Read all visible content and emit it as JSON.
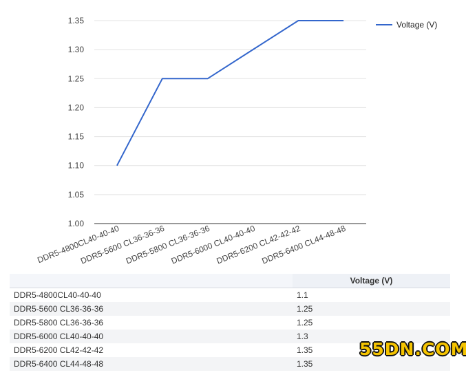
{
  "chart_data": {
    "type": "line",
    "categories": [
      "DDR5-4800CL40-40-40",
      "DDR5-5600 CL36-36-36",
      "DDR5-5800 CL36-36-36",
      "DDR5-6000 CL40-40-40",
      "DDR5-6200 CL42-42-42",
      "DDR5-6400 CL44-48-48"
    ],
    "series": [
      {
        "name": "Voltage (V)",
        "values": [
          1.1,
          1.25,
          1.25,
          1.3,
          1.35,
          1.35
        ],
        "color": "#3366cc"
      }
    ],
    "ylim": [
      1.0,
      1.35
    ],
    "yticks": [
      "1.00",
      "1.05",
      "1.10",
      "1.15",
      "1.20",
      "1.25",
      "1.30",
      "1.35"
    ],
    "grid": true,
    "legend": "right"
  },
  "table": {
    "headers": [
      "",
      "Voltage (V)"
    ],
    "rows": [
      [
        "DDR5-4800CL40-40-40",
        "1.1"
      ],
      [
        "DDR5-5600 CL36-36-36",
        "1.25"
      ],
      [
        "DDR5-5800 CL36-36-36",
        "1.25"
      ],
      [
        "DDR5-6000 CL40-40-40",
        "1.3"
      ],
      [
        "DDR5-6200 CL42-42-42",
        "1.35"
      ],
      [
        "DDR5-6400 CL44-48-48",
        "1.35"
      ]
    ]
  },
  "watermark": "55DN.COM"
}
